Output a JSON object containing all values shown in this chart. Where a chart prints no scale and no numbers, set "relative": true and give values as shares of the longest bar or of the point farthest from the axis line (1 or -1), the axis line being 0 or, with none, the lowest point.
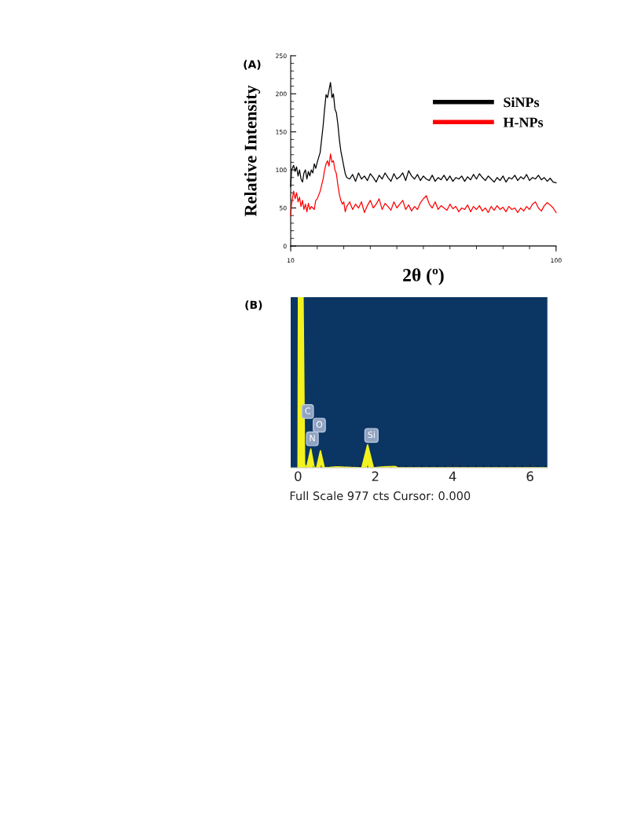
{
  "chart_data": [
    {
      "type": "line",
      "title": "(A)",
      "xlabel": "2θ (º)",
      "ylabel": "Relative Intensity",
      "xlim": [
        10,
        100
      ],
      "xticks": [
        10,
        {
          "value": 19,
          "label": null
        },
        {
          "value": 28,
          "label": null
        },
        {
          "value": 37,
          "label": null
        },
        {
          "value": 46,
          "label": null
        },
        {
          "value": 55,
          "label": null
        },
        {
          "value": 64,
          "label": null
        },
        {
          "value": 73,
          "label": null
        },
        {
          "value": 82,
          "label": null
        },
        {
          "value": 91,
          "label": null
        },
        100
      ],
      "ylim": [
        0,
        250
      ],
      "yticks": [
        0,
        {
          "value": 10,
          "label": null
        },
        {
          "value": 20,
          "label": null
        },
        {
          "value": 30,
          "label": null
        },
        {
          "value": 40,
          "label": null
        },
        50,
        {
          "value": 60,
          "label": null
        },
        {
          "value": 70,
          "label": null
        },
        {
          "value": 80,
          "label": null
        },
        {
          "value": 90,
          "label": null
        },
        100,
        {
          "value": 110,
          "label": null
        },
        {
          "value": 120,
          "label": null
        },
        {
          "value": 130,
          "label": null
        },
        {
          "value": 140,
          "label": null
        },
        150,
        {
          "value": 160,
          "label": null
        },
        {
          "value": 170,
          "label": null
        },
        {
          "value": 180,
          "label": null
        },
        {
          "value": 190,
          "label": null
        },
        200,
        {
          "value": 210,
          "label": null
        },
        {
          "value": 220,
          "label": null
        },
        {
          "value": 230,
          "label": null
        },
        {
          "value": 240,
          "label": null
        },
        250
      ],
      "legend": "top right",
      "grid": false,
      "marker": "none",
      "line_style": "solid",
      "x": [
        10,
        10.3,
        11,
        11.5,
        12,
        12.5,
        13,
        13.5,
        14,
        14.5,
        15,
        15.5,
        16,
        16.5,
        17,
        17.5,
        18,
        18.5,
        19,
        20,
        21,
        21.5,
        22,
        22.5,
        23,
        23.5,
        24,
        24.5,
        25,
        25.5,
        26,
        26.5,
        27,
        27.5,
        28,
        28.5,
        29,
        30,
        31,
        32,
        33,
        34,
        35,
        36,
        37,
        38,
        39,
        40,
        41,
        42,
        43,
        44,
        45,
        46,
        47,
        48,
        49,
        50,
        51,
        52,
        53,
        54,
        55,
        56,
        57,
        58,
        59,
        60,
        61,
        62,
        63,
        64,
        65,
        66,
        67,
        68,
        69,
        70,
        71,
        72,
        73,
        74,
        75,
        76,
        77,
        78,
        79,
        80,
        81,
        82,
        83,
        84,
        85,
        86,
        87,
        88,
        89,
        90,
        91,
        92,
        93,
        94,
        95,
        96,
        97,
        98,
        99,
        100
      ],
      "series": [
        {
          "name": "SiNPs",
          "color": "#000000",
          "values": [
            78,
            100,
            106,
            98,
            104,
            92,
            100,
            88,
            84,
            96,
            100,
            88,
            98,
            92,
            100,
            96,
            108,
            102,
            110,
            123,
            158,
            180,
            199,
            195,
            205,
            215,
            195,
            200,
            180,
            175,
            160,
            140,
            125,
            115,
            105,
            95,
            90,
            88,
            94,
            85,
            96,
            88,
            92,
            86,
            95,
            90,
            84,
            93,
            88,
            96,
            90,
            85,
            95,
            88,
            91,
            96,
            86,
            99,
            92,
            88,
            94,
            86,
            92,
            88,
            86,
            93,
            85,
            90,
            87,
            93,
            86,
            92,
            85,
            90,
            88,
            92,
            85,
            91,
            87,
            94,
            88,
            95,
            90,
            86,
            92,
            88,
            84,
            90,
            86,
            92,
            84,
            90,
            88,
            93,
            86,
            91,
            88,
            94,
            86,
            90,
            88,
            93,
            87,
            90,
            85,
            89,
            84,
            83
          ]
        },
        {
          "name": "H-NPs",
          "color": "#ff0000",
          "values": [
            40,
            55,
            72,
            62,
            70,
            58,
            64,
            52,
            60,
            48,
            55,
            45,
            56,
            48,
            52,
            50,
            48,
            60,
            62,
            72,
            88,
            100,
            108,
            112,
            105,
            121,
            110,
            112,
            100,
            95,
            80,
            68,
            60,
            55,
            58,
            45,
            52,
            58,
            48,
            55,
            50,
            58,
            44,
            53,
            60,
            50,
            55,
            62,
            48,
            56,
            52,
            47,
            58,
            50,
            55,
            60,
            48,
            54,
            46,
            52,
            48,
            57,
            62,
            66,
            55,
            50,
            58,
            48,
            53,
            50,
            47,
            55,
            49,
            52,
            45,
            50,
            48,
            54,
            45,
            52,
            48,
            53,
            46,
            50,
            44,
            52,
            47,
            53,
            48,
            51,
            45,
            52,
            48,
            50,
            44,
            50,
            46,
            52,
            48,
            55,
            58,
            50,
            46,
            53,
            57,
            54,
            50,
            44
          ]
        }
      ]
    },
    {
      "type": "area",
      "title": "(B)",
      "relative": true,
      "xlim": [
        -0.19,
        6.45
      ],
      "xticks": [
        0,
        {
          "value": 0.2,
          "label": null
        },
        {
          "value": 0.4,
          "label": null
        },
        {
          "value": 0.6,
          "label": null
        },
        {
          "value": 0.8,
          "label": null
        },
        {
          "value": 1,
          "label": null
        },
        {
          "value": 1.2,
          "label": null
        },
        {
          "value": 1.4,
          "label": null
        },
        {
          "value": 1.6,
          "label": null
        },
        {
          "value": 1.8,
          "label": null
        },
        2,
        {
          "value": 2.2,
          "label": null
        },
        {
          "value": 2.4,
          "label": null
        },
        {
          "value": 2.6,
          "label": null
        },
        {
          "value": 2.8,
          "label": null
        },
        {
          "value": 3,
          "label": null
        },
        {
          "value": 3.2,
          "label": null
        },
        {
          "value": 3.4,
          "label": null
        },
        {
          "value": 3.6,
          "label": null
        },
        {
          "value": 3.8,
          "label": null
        },
        4,
        {
          "value": 4.2,
          "label": null
        },
        {
          "value": 4.4,
          "label": null
        },
        {
          "value": 4.6,
          "label": null
        },
        {
          "value": 4.8,
          "label": null
        },
        {
          "value": 5,
          "label": null
        },
        {
          "value": 5.2,
          "label": null
        },
        {
          "value": 5.4,
          "label": null
        },
        {
          "value": 5.6,
          "label": null
        },
        {
          "value": 5.8,
          "label": null
        },
        6,
        {
          "value": 6.2,
          "label": null
        },
        {
          "value": 6.4,
          "label": null
        }
      ],
      "x": [
        0,
        0.01,
        0.13,
        0.17,
        0.22,
        0.33,
        0.42,
        0.48,
        0.58,
        0.68,
        1.0,
        1.65,
        1.8,
        1.95,
        2.2,
        2.5,
        2.6,
        6.45
      ],
      "series": [
        {
          "color": "#f2f21e",
          "values": [
            0,
            1,
            1,
            0.02,
            0,
            0.11,
            0,
            0,
            0.1,
            0,
            0.005,
            0,
            0.135,
            0,
            0.005,
            0.008,
            0,
            0
          ]
        }
      ],
      "annotations": [
        {
          "text": "C",
          "x": 0.25,
          "y": 0.33
        },
        {
          "text": "O",
          "x": 0.55,
          "y": 0.25
        },
        {
          "text": "N",
          "x": 0.37,
          "y": 0.17
        },
        {
          "text": "Si",
          "x": 1.9,
          "y": 0.19
        },
        "Full Scale 977 cts Cursor: 0.000"
      ]
    }
  ]
}
